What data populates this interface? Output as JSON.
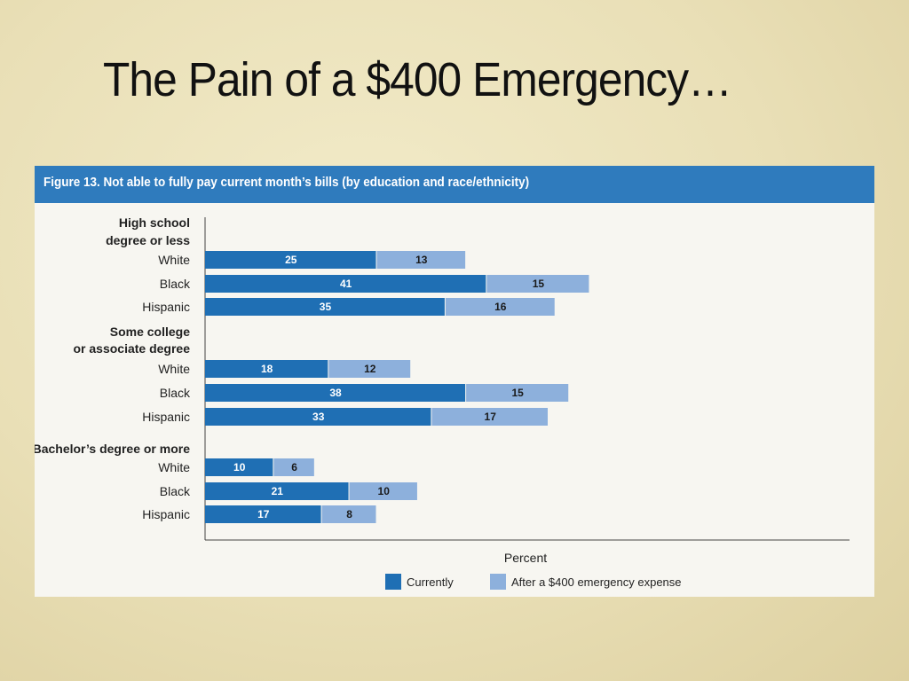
{
  "slide": {
    "title": "The Pain of a $400 Emergency…"
  },
  "chart_data": {
    "type": "bar",
    "orientation": "horizontal",
    "stacked": true,
    "title": "Figure 13. Not able to fully pay current month’s bills (by education and race/ethnicity)",
    "xlabel": "Percent",
    "xlim": [
      0,
      60
    ],
    "grid": false,
    "legend_position": "bottom",
    "groups": [
      {
        "label_lines": [
          "High school",
          "degree or less"
        ],
        "categories": [
          "White",
          "Black",
          "Hispanic"
        ]
      },
      {
        "label_lines": [
          "Some college",
          "or associate degree"
        ],
        "categories": [
          "White",
          "Black",
          "Hispanic"
        ]
      },
      {
        "label_lines": [
          "Bachelor’s degree or more"
        ],
        "categories": [
          "White",
          "Black",
          "Hispanic"
        ]
      }
    ],
    "series": [
      {
        "name": "Currently",
        "color": "#1f6fb4",
        "label_color": "#ffffff",
        "values": [
          25,
          41,
          35,
          18,
          38,
          33,
          10,
          21,
          17
        ]
      },
      {
        "name": "After a $400 emergency expense",
        "color": "#8db0dc",
        "label_color": "#1a1a1a",
        "values": [
          13,
          15,
          16,
          12,
          15,
          17,
          6,
          10,
          8
        ]
      }
    ]
  }
}
